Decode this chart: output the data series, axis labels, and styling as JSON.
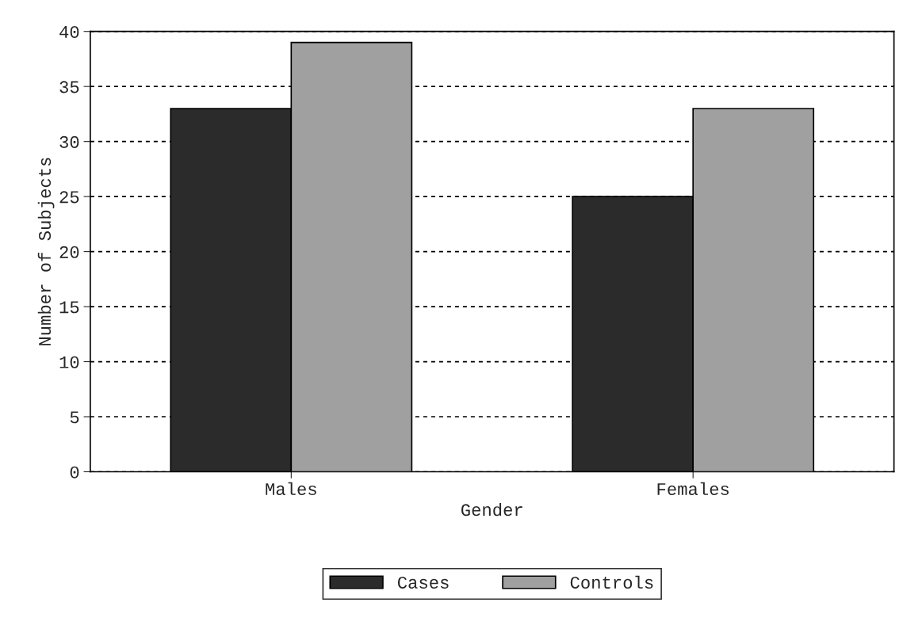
{
  "chart_data": {
    "type": "bar",
    "xlabel": "Gender",
    "ylabel": "Number of Subjects",
    "categories": [
      "Males",
      "Females"
    ],
    "series": [
      {
        "name": "Cases",
        "color": "#2b2b2b",
        "values": [
          33,
          25
        ]
      },
      {
        "name": "Controls",
        "color": "#a0a0a0",
        "values": [
          39,
          33
        ]
      }
    ],
    "ylim": [
      0,
      40
    ],
    "yticks": [
      0,
      5,
      10,
      15,
      20,
      25,
      30,
      35,
      40
    ],
    "grid": "y",
    "legend": "bottom"
  }
}
